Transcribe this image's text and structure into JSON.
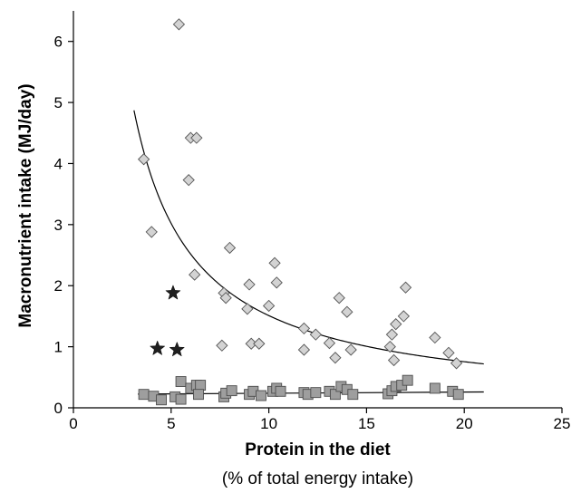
{
  "chart_data": {
    "type": "scatter",
    "xlabel": "Protein in the diet",
    "xlabel_sub": "(% of total energy intake)",
    "ylabel": "Macronutrient intake (MJ/day)",
    "xlim": [
      0,
      25
    ],
    "ylim": [
      0,
      6.5
    ],
    "xticks": [
      0,
      5,
      10,
      15,
      20,
      25
    ],
    "yticks": [
      0,
      1,
      2,
      3,
      4,
      5,
      6
    ],
    "grid": false,
    "legend": "none",
    "series": [
      {
        "marker": "diamond",
        "color": "#d3d3d3",
        "points": [
          [
            3.6,
            4.07
          ],
          [
            4.0,
            2.88
          ],
          [
            5.4,
            6.28
          ],
          [
            5.9,
            3.73
          ],
          [
            6.0,
            4.42
          ],
          [
            6.3,
            4.42
          ],
          [
            6.2,
            2.18
          ],
          [
            7.6,
            1.02
          ],
          [
            7.7,
            1.88
          ],
          [
            7.8,
            1.8
          ],
          [
            8.0,
            2.62
          ],
          [
            8.9,
            1.62
          ],
          [
            9.0,
            2.02
          ],
          [
            9.1,
            1.05
          ],
          [
            9.5,
            1.05
          ],
          [
            10.0,
            1.67
          ],
          [
            10.3,
            2.37
          ],
          [
            10.4,
            2.05
          ],
          [
            11.8,
            1.3
          ],
          [
            11.8,
            0.95
          ],
          [
            12.4,
            1.2
          ],
          [
            13.1,
            1.06
          ],
          [
            13.4,
            0.82
          ],
          [
            13.6,
            1.8
          ],
          [
            14.0,
            1.57
          ],
          [
            14.2,
            0.95
          ],
          [
            16.2,
            1.0
          ],
          [
            16.3,
            1.2
          ],
          [
            16.4,
            0.78
          ],
          [
            16.5,
            1.37
          ],
          [
            16.9,
            1.5
          ],
          [
            17.0,
            1.97
          ],
          [
            18.5,
            1.15
          ],
          [
            19.2,
            0.9
          ],
          [
            19.6,
            0.73
          ]
        ]
      },
      {
        "marker": "square",
        "color": "#9e9e9e",
        "points": [
          [
            3.6,
            0.22
          ],
          [
            4.1,
            0.19
          ],
          [
            4.5,
            0.13
          ],
          [
            5.2,
            0.18
          ],
          [
            5.5,
            0.14
          ],
          [
            5.5,
            0.43
          ],
          [
            6.0,
            0.32
          ],
          [
            6.3,
            0.37
          ],
          [
            6.5,
            0.37
          ],
          [
            6.4,
            0.22
          ],
          [
            7.7,
            0.18
          ],
          [
            7.8,
            0.24
          ],
          [
            8.1,
            0.28
          ],
          [
            9.0,
            0.22
          ],
          [
            9.2,
            0.27
          ],
          [
            9.6,
            0.2
          ],
          [
            10.2,
            0.27
          ],
          [
            10.4,
            0.32
          ],
          [
            10.6,
            0.27
          ],
          [
            11.8,
            0.25
          ],
          [
            12.0,
            0.22
          ],
          [
            12.4,
            0.25
          ],
          [
            13.1,
            0.27
          ],
          [
            13.4,
            0.22
          ],
          [
            13.7,
            0.35
          ],
          [
            14.0,
            0.3
          ],
          [
            14.3,
            0.22
          ],
          [
            16.1,
            0.23
          ],
          [
            16.3,
            0.28
          ],
          [
            16.5,
            0.35
          ],
          [
            16.8,
            0.37
          ],
          [
            17.1,
            0.45
          ],
          [
            18.5,
            0.32
          ],
          [
            19.4,
            0.27
          ],
          [
            19.7,
            0.22
          ]
        ]
      },
      {
        "marker": "star",
        "color": "#1f1f1f",
        "points": [
          [
            5.1,
            1.88
          ],
          [
            4.3,
            0.97
          ],
          [
            5.3,
            0.95
          ]
        ]
      }
    ],
    "fit_lines": [
      {
        "type": "power",
        "a": 15.1,
        "b": -1.0,
        "x_range": [
          3.1,
          21.0
        ]
      },
      {
        "type": "linear",
        "points": [
          [
            3.3,
            0.225
          ],
          [
            21.0,
            0.26
          ]
        ]
      }
    ]
  }
}
